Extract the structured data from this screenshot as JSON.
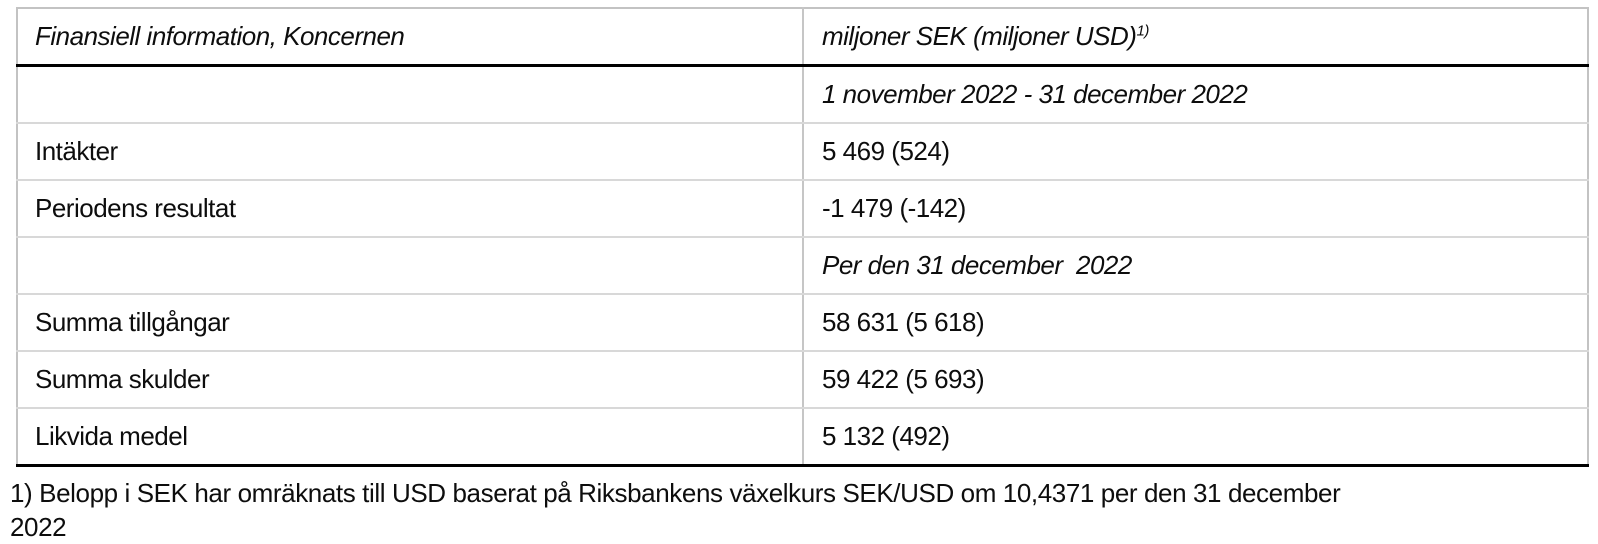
{
  "colors": {
    "background": "#ffffff",
    "text": "#0d0d0d",
    "rule_strong": "#000000",
    "rule_outer": "#c3c3c3",
    "rule_inner": "#d8d8d8"
  },
  "table": {
    "header": {
      "col1": "Finansiell information, Koncernen",
      "col2": "miljoner SEK (miljoner USD)",
      "footnote_ref": "1)"
    },
    "rows": [
      {
        "label": "",
        "value": "1 november 2022 - 31 december 2022"
      },
      {
        "label": "Intäkter",
        "value": "5 469 (524)"
      },
      {
        "label": "Periodens resultat",
        "value": "-1 479 (-142)"
      },
      {
        "label": "",
        "value": "Per den 31 december  2022"
      },
      {
        "label": "Summa tillgångar",
        "value": "58 631 (5 618)"
      },
      {
        "label": "Summa skulder",
        "value": "59 422 (5 693)"
      },
      {
        "label": "Likvida medel",
        "value": "5 132 (492)"
      }
    ]
  },
  "footnote": {
    "line1": "1) Belopp i SEK har omräknats till USD baserat på Riksbankens växelkurs SEK/USD om 10,4371 per den 31 december",
    "line2": "2022"
  }
}
